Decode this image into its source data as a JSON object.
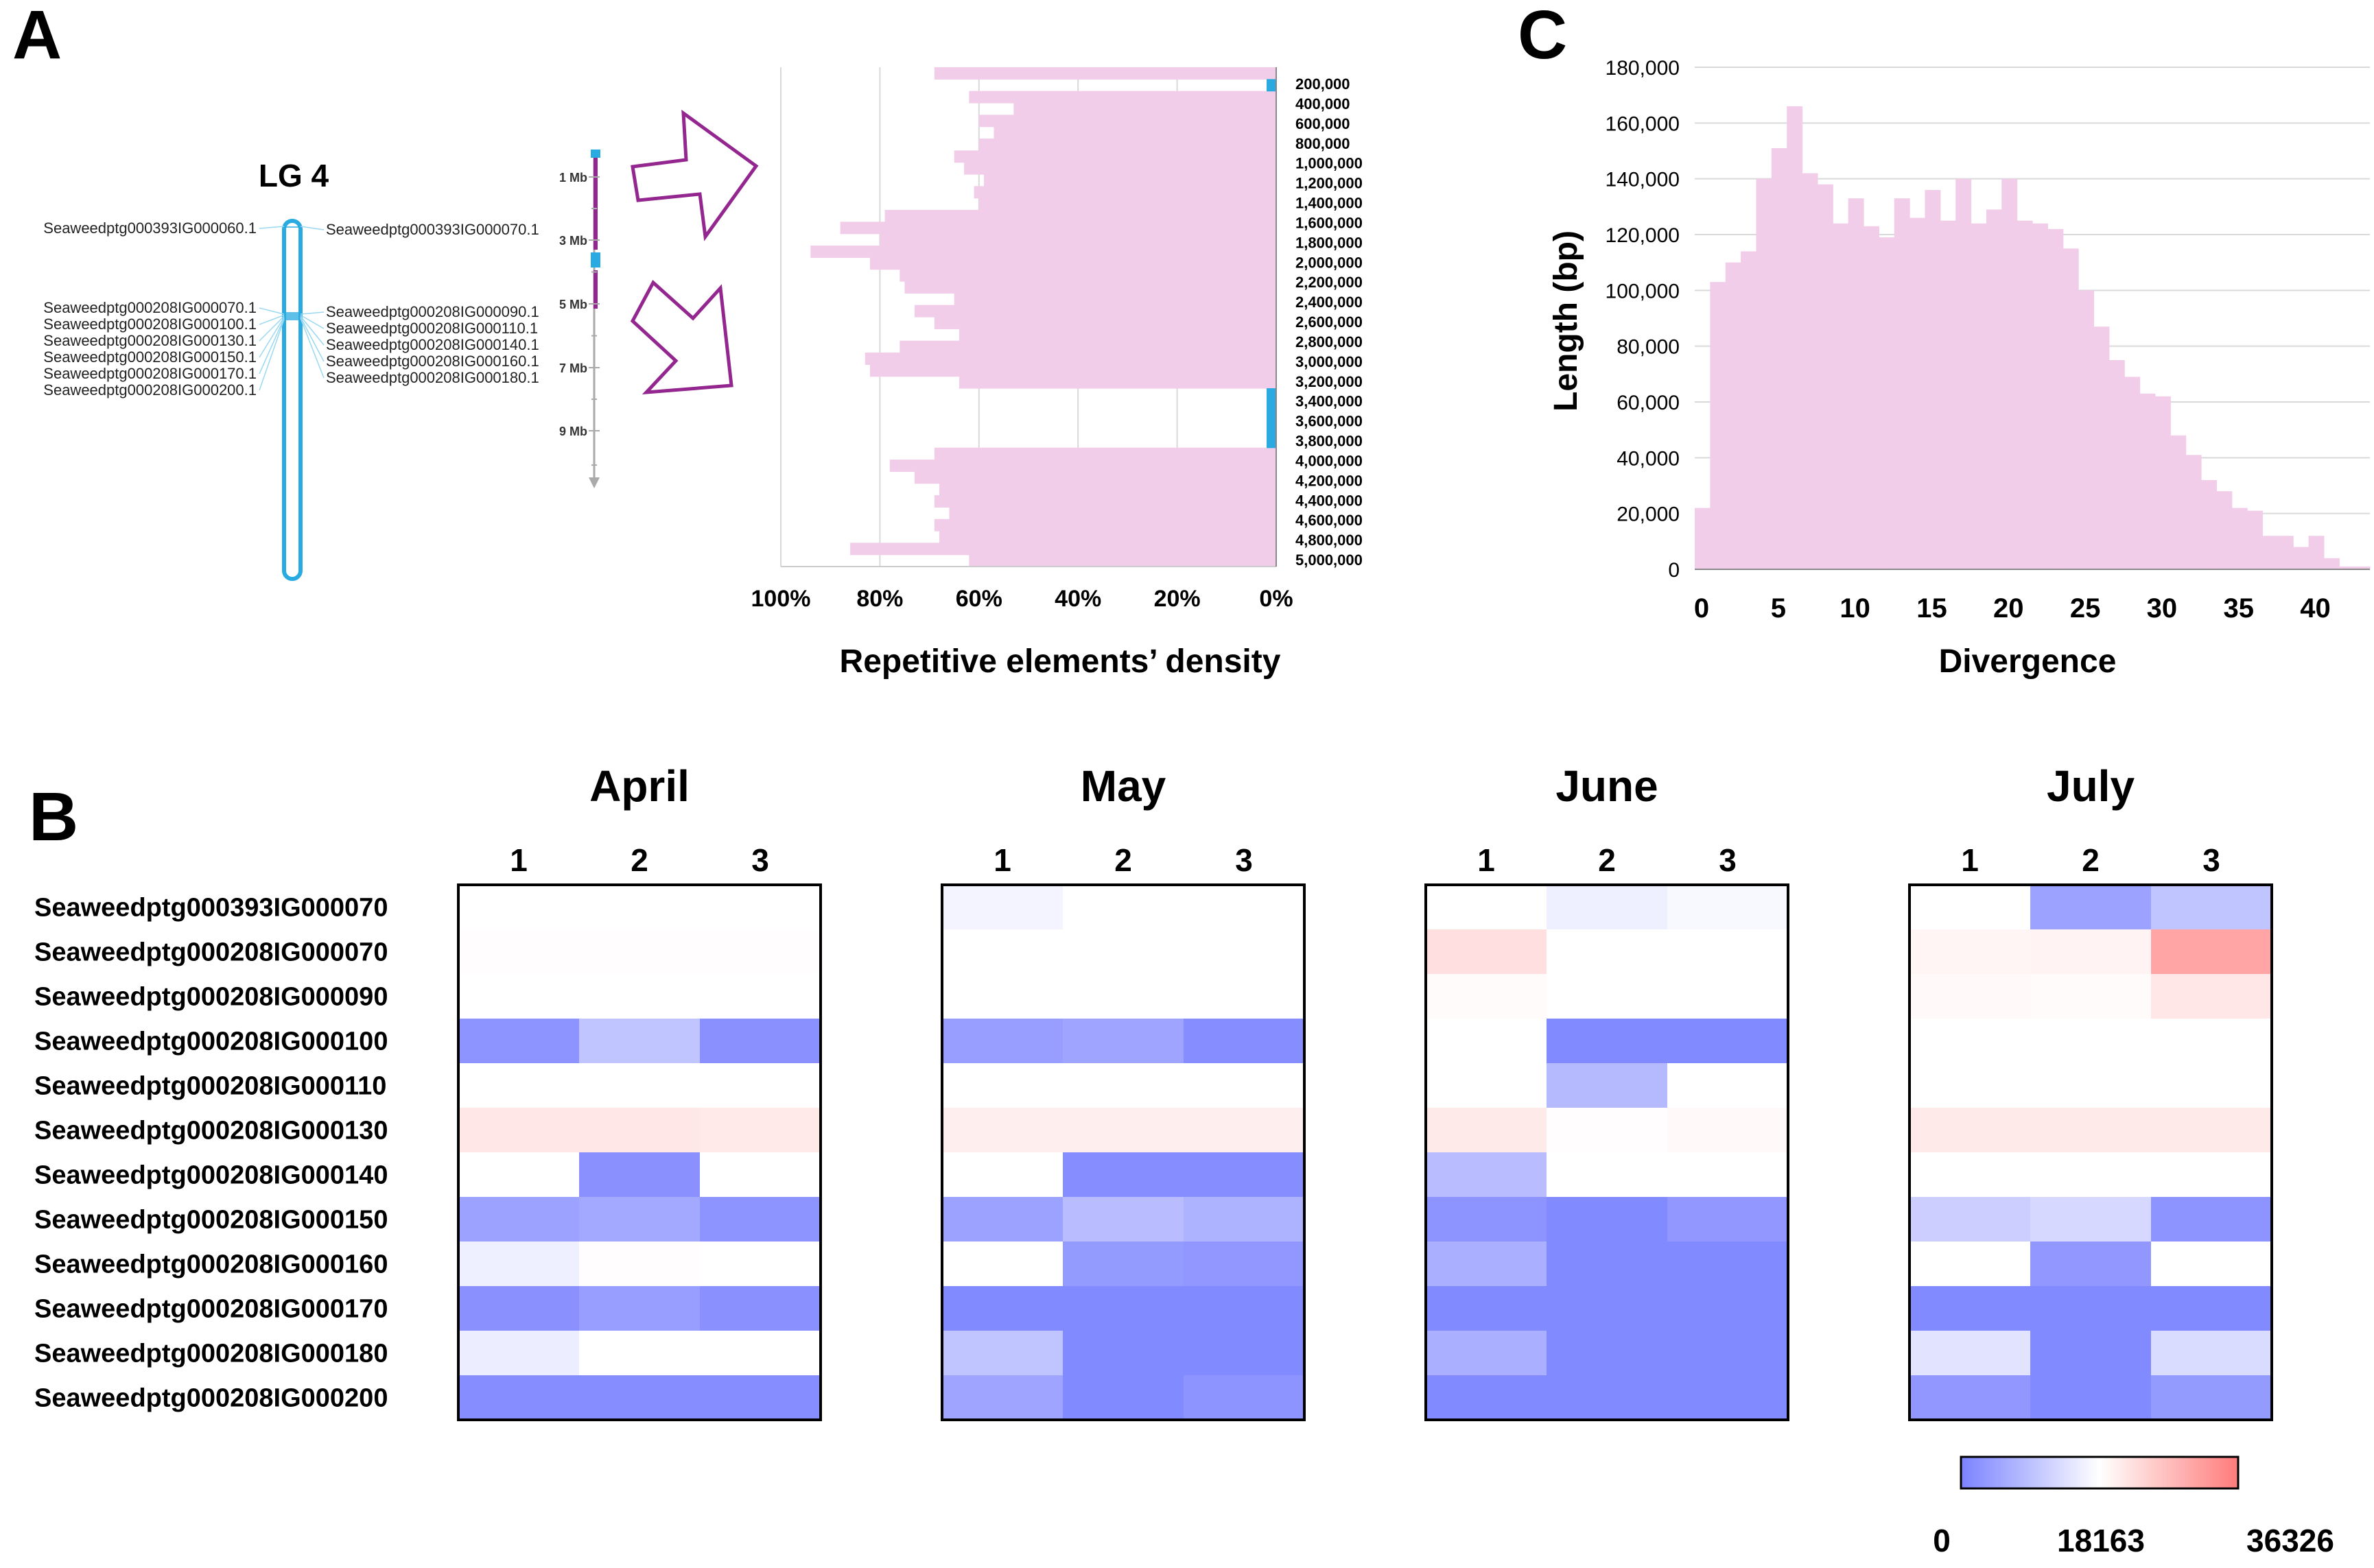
{
  "panel_labels": {
    "a": "A",
    "b": "B",
    "c": "C"
  },
  "linkage_map": {
    "group": "LG 4",
    "left_top_label": "Seaweedptg000393IG000060.1",
    "right_top_label": "Seaweedptg000393IG000070.1",
    "left_labels": [
      "Seaweedptg000208IG000070.1",
      "Seaweedptg000208IG000100.1",
      "Seaweedptg000208IG000130.1",
      "Seaweedptg000208IG000150.1",
      "Seaweedptg000208IG000170.1",
      "Seaweedptg000208IG000200.1"
    ],
    "right_labels": [
      "Seaweedptg000208IG000090.1",
      "Seaweedptg000208IG000110.1",
      "Seaweedptg000208IG000140.1",
      "Seaweedptg000208IG000160.1",
      "Seaweedptg000208IG000180.1"
    ],
    "scale_ticks": [
      "1 Mb",
      "3 Mb",
      "5 Mb",
      "7 Mb",
      "9 Mb"
    ],
    "colors": {
      "chromosome": "#29abe2",
      "region": "#93278f",
      "arrow": "#93278f"
    }
  },
  "chart_data": [
    {
      "type": "bar",
      "orientation": "horizontal",
      "xlabel": "Repetitive elements’ density",
      "x_ticks": [
        "100%",
        "80%",
        "60%",
        "40%",
        "20%",
        "0%"
      ],
      "xlim": [
        0,
        100
      ],
      "y_ticks": [
        "200,000",
        "400,000",
        "600,000",
        "800,000",
        "1,000,000",
        "1,200,000",
        "1,400,000",
        "1,600,000",
        "1,800,000",
        "2,000,000",
        "2,200,000",
        "2,400,000",
        "2,600,000",
        "2,800,000",
        "3,000,000",
        "3,200,000",
        "3,400,000",
        "3,600,000",
        "3,800,000",
        "4,000,000",
        "4,200,000",
        "4,400,000",
        "4,600,000",
        "4,800,000",
        "5,000,000"
      ],
      "values": [
        69,
        0,
        62,
        53,
        60,
        57,
        60,
        65,
        63,
        59,
        61,
        60,
        79,
        88,
        80,
        94,
        82,
        76,
        75,
        65,
        73,
        69,
        64,
        76,
        83,
        82,
        64,
        0,
        0,
        0,
        0,
        0,
        69,
        78,
        73,
        68,
        69,
        66,
        69,
        68,
        86,
        62
      ],
      "gene_marks": [
        {
          "position": 1,
          "kind": "gene"
        },
        {
          "position": 27,
          "kind": "gene"
        },
        {
          "position": 28,
          "kind": "gene"
        },
        {
          "position": 29,
          "kind": "gene"
        },
        {
          "position": 30,
          "kind": "gene"
        },
        {
          "position": 31,
          "kind": "gene"
        }
      ],
      "colors": {
        "bar": "#f2cdea",
        "gene": "#29abe2",
        "grid": "#d9d9d9"
      }
    },
    {
      "type": "heatmap",
      "rows": [
        "Seaweedptg000393IG000070",
        "Seaweedptg000208IG000070",
        "Seaweedptg000208IG000090",
        "Seaweedptg000208IG000100",
        "Seaweedptg000208IG000110",
        "Seaweedptg000208IG000130",
        "Seaweedptg000208IG000140",
        "Seaweedptg000208IG000150",
        "Seaweedptg000208IG000160",
        "Seaweedptg000208IG000170",
        "Seaweedptg000208IG000180",
        "Seaweedptg000208IG000200"
      ],
      "groups": [
        {
          "name": "April",
          "columns": [
            "1",
            "2",
            "3"
          ],
          "values": [
            [
              18163,
              18163,
              18163
            ],
            [
              18500,
              18500,
              18500
            ],
            [
              18163,
              18163,
              18163
            ],
            [
              2500,
              9500,
              2000
            ],
            [
              18163,
              18163,
              18163
            ],
            [
              21500,
              21500,
              21200
            ],
            [
              18163,
              2000,
              18163
            ],
            [
              4500,
              5500,
              2500
            ],
            [
              16000,
              18500,
              18163
            ],
            [
              2000,
              4000,
              2000
            ],
            [
              15500,
              18163,
              18163
            ],
            [
              1500,
              1500,
              1500
            ]
          ]
        },
        {
          "name": "May",
          "columns": [
            "1",
            "2",
            "3"
          ],
          "values": [
            [
              16500,
              18163,
              18163
            ],
            [
              18163,
              18163,
              18163
            ],
            [
              18163,
              18163,
              18163
            ],
            [
              4000,
              5000,
              1500
            ],
            [
              18163,
              18163,
              18163
            ],
            [
              20500,
              20500,
              20500
            ],
            [
              18163,
              1500,
              1500
            ],
            [
              4500,
              8500,
              7000
            ],
            [
              18163,
              3500,
              3000
            ],
            [
              1000,
              1000,
              1000
            ],
            [
              9500,
              1000,
              1000
            ],
            [
              5000,
              1000,
              2500
            ]
          ]
        },
        {
          "name": "June",
          "columns": [
            "1",
            "2",
            "3"
          ],
          "values": [
            [
              18163,
              16000,
              17200
            ],
            [
              22500,
              18163,
              18163
            ],
            [
              18700,
              18163,
              18163
            ],
            [
              18163,
              1000,
              1000
            ],
            [
              18163,
              8000,
              18163
            ],
            [
              21000,
              18500,
              19000
            ],
            [
              8500,
              18163,
              18163
            ],
            [
              2500,
              1000,
              3000
            ],
            [
              6500,
              1000,
              1000
            ],
            [
              1000,
              1000,
              1000
            ],
            [
              6500,
              1000,
              1000
            ],
            [
              1000,
              1000,
              1000
            ]
          ]
        },
        {
          "name": "July",
          "columns": [
            "1",
            "2",
            "3"
          ],
          "values": [
            [
              18163,
              4500,
              9500
            ],
            [
              19500,
              19800,
              30500
            ],
            [
              19000,
              18700,
              21500
            ],
            [
              18163,
              18163,
              18163
            ],
            [
              18163,
              18163,
              18163
            ],
            [
              21000,
              21000,
              21000
            ],
            [
              18163,
              18163,
              18163
            ],
            [
              11000,
              12500,
              2500
            ],
            [
              18163,
              3000,
              18163
            ],
            [
              1000,
              1000,
              1000
            ],
            [
              14000,
              1000,
              13000
            ],
            [
              3000,
              1000,
              3500
            ]
          ]
        }
      ],
      "colorbar": {
        "min": 0,
        "mid": 18163,
        "max": 36326,
        "tick_labels": [
          "0",
          "18163",
          "36326"
        ]
      },
      "colors": {
        "low": "#7b83ff",
        "mid": "#ffffff",
        "high": "#ff7b7b"
      }
    },
    {
      "type": "bar",
      "xlabel": "Divergence",
      "ylabel": "Length (bp)",
      "x_ticks": [
        "0",
        "5",
        "10",
        "15",
        "20",
        "25",
        "30",
        "35",
        "40"
      ],
      "y_ticks": [
        "0",
        "20,000",
        "40,000",
        "60,000",
        "80,000",
        "100,000",
        "120,000",
        "140,000",
        "160,000",
        "180,000"
      ],
      "xlim": [
        0,
        44
      ],
      "ylim": [
        0,
        180000
      ],
      "values": [
        22000,
        103000,
        110000,
        114000,
        140000,
        151000,
        166000,
        142000,
        138000,
        124000,
        133000,
        123000,
        119000,
        133000,
        126000,
        136000,
        125000,
        140000,
        124000,
        129000,
        140000,
        125000,
        124000,
        122000,
        115000,
        100000,
        87000,
        75000,
        69000,
        63000,
        62000,
        48000,
        41000,
        32000,
        28000,
        22000,
        21000,
        12000,
        12000,
        8000,
        12000,
        4000,
        1000,
        1000
      ],
      "colors": {
        "bar": "#f2cdea",
        "grid": "#d9d9d9"
      }
    }
  ]
}
